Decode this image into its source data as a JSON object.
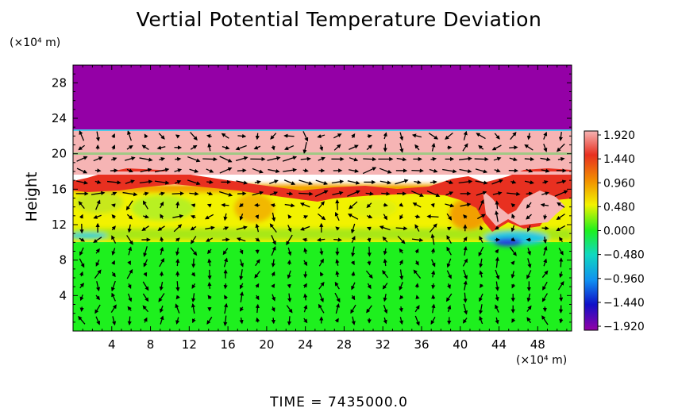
{
  "chart_data": {
    "type": "heatmap",
    "title": "Vertial Potential Temperature Deviation",
    "ylabel": "Height",
    "y_unit": "(×10⁴ m)",
    "x_unit": "(×10⁴ m)",
    "xlim": [
      0,
      51.5
    ],
    "ylim": [
      0,
      30
    ],
    "x_ticks": [
      "4",
      "8",
      "12",
      "16",
      "20",
      "24",
      "28",
      "32",
      "36",
      "40",
      "44",
      "48"
    ],
    "y_ticks": [
      "4",
      "8",
      "12",
      "16",
      "20",
      "24",
      "28"
    ],
    "colorbar": {
      "labels": [
        "1.920",
        "1.440",
        "0.960",
        "0.480",
        "0.000",
        "−0.480",
        "−0.960",
        "−1.440",
        "−1.920"
      ],
      "range": [
        -1.92,
        1.92
      ]
    },
    "layers": [
      {
        "y_from": 22.5,
        "y_to": 30,
        "value": -1.92
      },
      {
        "y_from": 19.5,
        "y_to": 22.5,
        "value": 1.92
      },
      {
        "y_from": 17.5,
        "y_to": 19.5,
        "value": 1.92
      },
      {
        "y_from": 16,
        "y_to": 17.5,
        "value": 1.5
      },
      {
        "y_from": 13,
        "y_to": 16,
        "value": 0.8
      },
      {
        "y_from": 11,
        "y_to": 13,
        "value": 0.9
      },
      {
        "y_from": 10,
        "y_to": 11,
        "value": 0.3
      },
      {
        "y_from": 0,
        "y_to": 10,
        "value": 0.0
      }
    ],
    "grid": false,
    "vectors": "wind field arrows overlaid",
    "colors": {
      "top_band": "#9400a6",
      "upper_band": "#f6b4b4",
      "red_band": "#e8301c",
      "yellow_band": "#f2f200",
      "lower_band": "#1ef01e"
    }
  },
  "footer": {
    "time_label": "TIME  =  7435000.0"
  }
}
